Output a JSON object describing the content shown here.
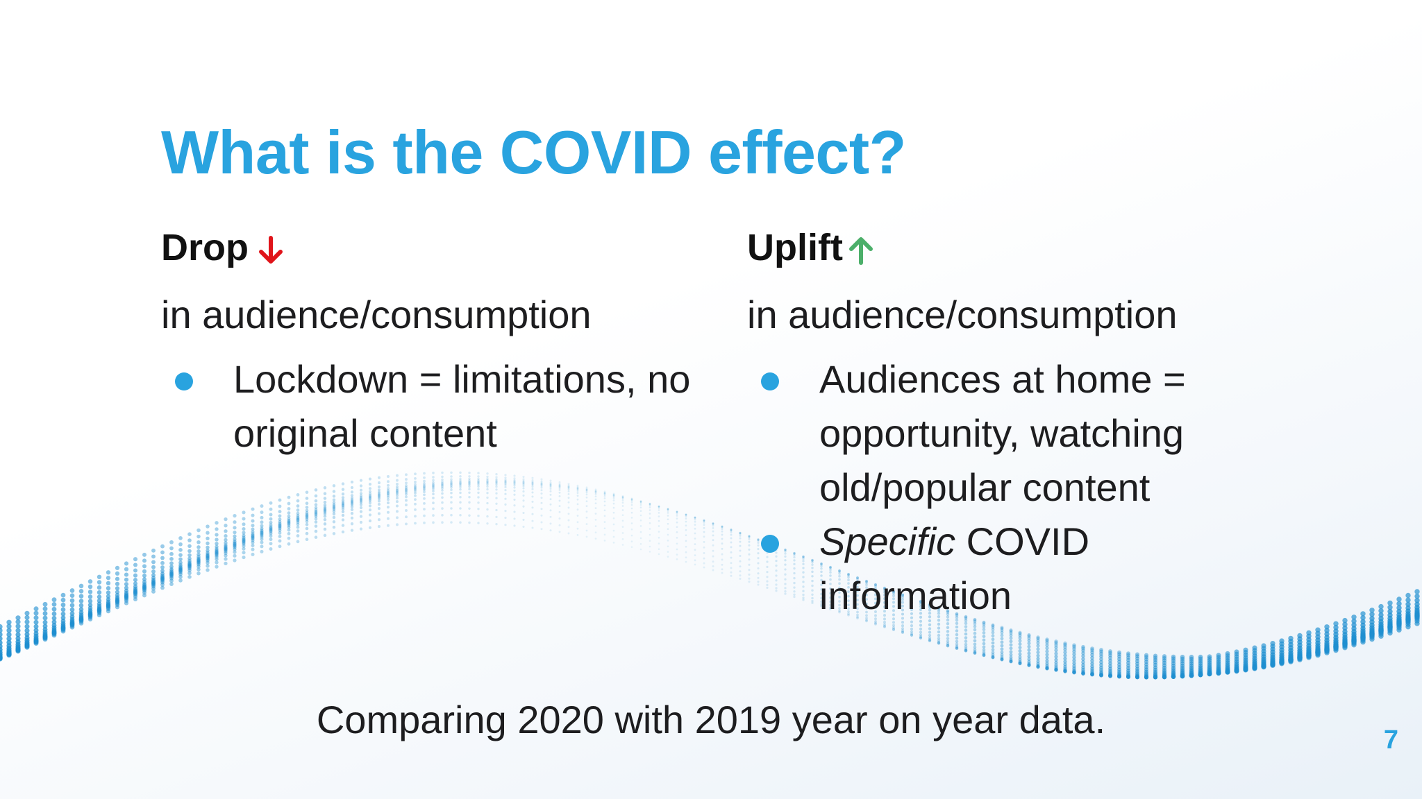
{
  "slide": {
    "title": "What is the COVID effect?",
    "page_number": "7",
    "footer": "Comparing 2020 with 2019 year on year data."
  },
  "left": {
    "heading": "Drop",
    "arrow_icon": "arrow-down-icon",
    "subheading": "in audience/consumption",
    "bullets": [
      {
        "text": "Lockdown = limitations, no original content"
      }
    ]
  },
  "right": {
    "heading": "Uplift",
    "arrow_icon": "arrow-up-icon",
    "subheading": "in audience/consumption",
    "bullets": [
      {
        "text": "Audiences at home = opportunity, watching old/popular content"
      },
      {
        "emphasis": "Specific",
        "text": " COVID information"
      }
    ]
  },
  "colors": {
    "title": "#29a3df",
    "bullet": "#29a3df",
    "drop_arrow": "#e0141a",
    "uplift_arrow": "#4caf6a",
    "wave": "#1f8fd0"
  }
}
